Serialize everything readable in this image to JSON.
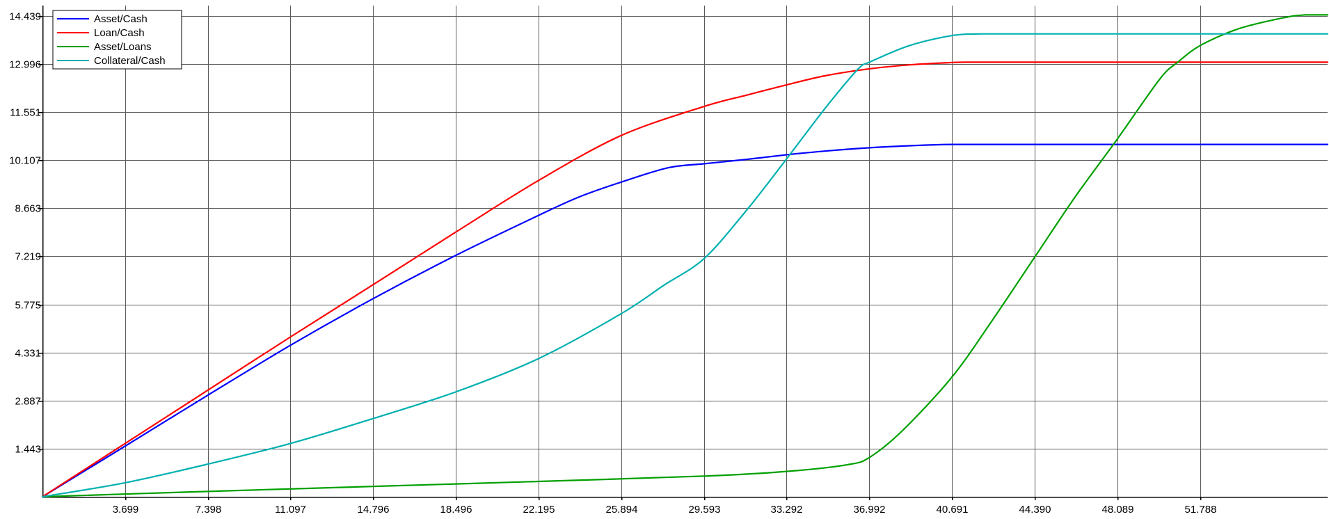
{
  "chart_data": {
    "type": "line",
    "title": "",
    "xlabel": "",
    "ylabel": "",
    "xlim": [
      0,
      57.5
    ],
    "ylim": [
      0,
      14.75
    ],
    "grid": true,
    "legend_position": "top-left",
    "x_ticks": [
      "3.699",
      "7.398",
      "11.097",
      "14.796",
      "18.496",
      "22.195",
      "25.894",
      "29.593",
      "33.292",
      "36.992",
      "40.691",
      "44.390",
      "48.089",
      "51.788"
    ],
    "y_ticks": [
      "1.443",
      "2.887",
      "4.331",
      "5.775",
      "7.219",
      "8.663",
      "10.107",
      "11.551",
      "12.996",
      "14.439"
    ],
    "series": [
      {
        "name": "Asset/Cash",
        "color": "#0000ff",
        "x": [
          0,
          3.7,
          7.4,
          11.1,
          14.8,
          18.5,
          22.2,
          24.0,
          25.9,
          28.0,
          29.6,
          31.5,
          33.3,
          35.0,
          37.0,
          38.8,
          40.7,
          44.4,
          48.1,
          51.8,
          55.5,
          57.5
        ],
        "y": [
          0,
          1.52,
          3.05,
          4.55,
          5.95,
          7.25,
          8.45,
          9.0,
          9.45,
          9.88,
          10.0,
          10.13,
          10.27,
          10.38,
          10.48,
          10.54,
          10.58,
          10.58,
          10.58,
          10.58,
          10.58,
          10.58
        ]
      },
      {
        "name": "Loan/Cash",
        "color": "#ff0000",
        "x": [
          0,
          3.7,
          7.4,
          11.1,
          14.8,
          18.5,
          22.2,
          25.9,
          29.6,
          31.5,
          33.3,
          35.0,
          37.0,
          38.8,
          40.7,
          41.5,
          44.4,
          48.1,
          51.8,
          55.5,
          57.5
        ],
        "y": [
          0,
          1.6,
          3.2,
          4.8,
          6.37,
          7.95,
          9.5,
          10.85,
          11.72,
          12.06,
          12.37,
          12.64,
          12.85,
          12.97,
          13.04,
          13.05,
          13.05,
          13.05,
          13.05,
          13.05,
          13.05
        ]
      },
      {
        "name": "Asset/Loans",
        "color": "#00a000",
        "x": [
          0,
          7.4,
          14.8,
          22.2,
          29.6,
          33.3,
          36.0,
          37.0,
          38.5,
          40.7,
          42.5,
          44.4,
          46.2,
          48.1,
          50.0,
          50.8,
          51.8,
          53.5,
          55.5,
          56.5,
          57.5
        ],
        "y": [
          0,
          0.16,
          0.31,
          0.46,
          0.62,
          0.76,
          0.96,
          1.18,
          2.0,
          3.6,
          5.3,
          7.2,
          9.0,
          10.75,
          12.55,
          13.05,
          13.55,
          14.05,
          14.38,
          14.47,
          14.47
        ]
      },
      {
        "name": "Collateral/Cash",
        "color": "#00b0b0",
        "x": [
          0,
          3.7,
          7.4,
          11.1,
          14.8,
          18.5,
          22.2,
          25.9,
          27.8,
          29.6,
          31.5,
          33.3,
          35.0,
          36.5,
          37.0,
          38.8,
          40.7,
          42.0,
          44.4,
          48.1,
          51.8,
          55.5,
          57.5
        ],
        "y": [
          0,
          0.42,
          0.98,
          1.6,
          2.35,
          3.15,
          4.15,
          5.5,
          6.35,
          7.15,
          8.6,
          10.15,
          11.65,
          12.85,
          13.05,
          13.55,
          13.85,
          13.9,
          13.9,
          13.9,
          13.9,
          13.9,
          13.9
        ]
      }
    ]
  }
}
